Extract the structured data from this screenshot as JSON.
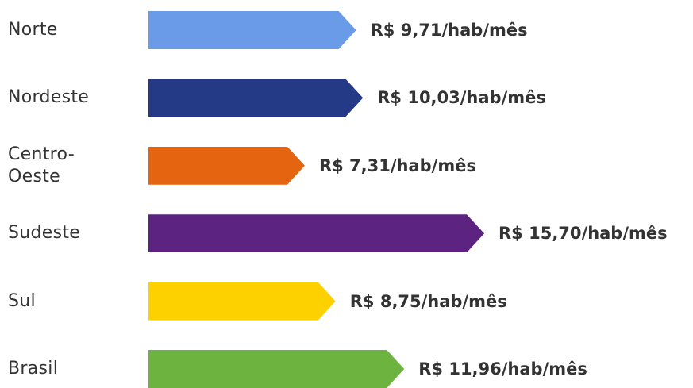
{
  "chart_data": {
    "type": "bar",
    "categories": [
      "Norte",
      "Nordeste",
      "Centro-Oeste",
      "Sudeste",
      "Sul",
      "Brasil"
    ],
    "values": [
      9.71,
      10.03,
      7.31,
      15.7,
      8.75,
      11.96
    ],
    "value_labels": [
      "R$ 9,71/hab/mês",
      "R$ 10,03/hab/mês",
      "R$ 7,31/hab/mês",
      "R$ 15,70/hab/mês",
      "R$ 8,75/hab/mês",
      "R$ 11,96/hab/mês"
    ],
    "colors": [
      "#6a9be8",
      "#243a87",
      "#e5640f",
      "#5c2381",
      "#fdd000",
      "#6db33f"
    ]
  }
}
